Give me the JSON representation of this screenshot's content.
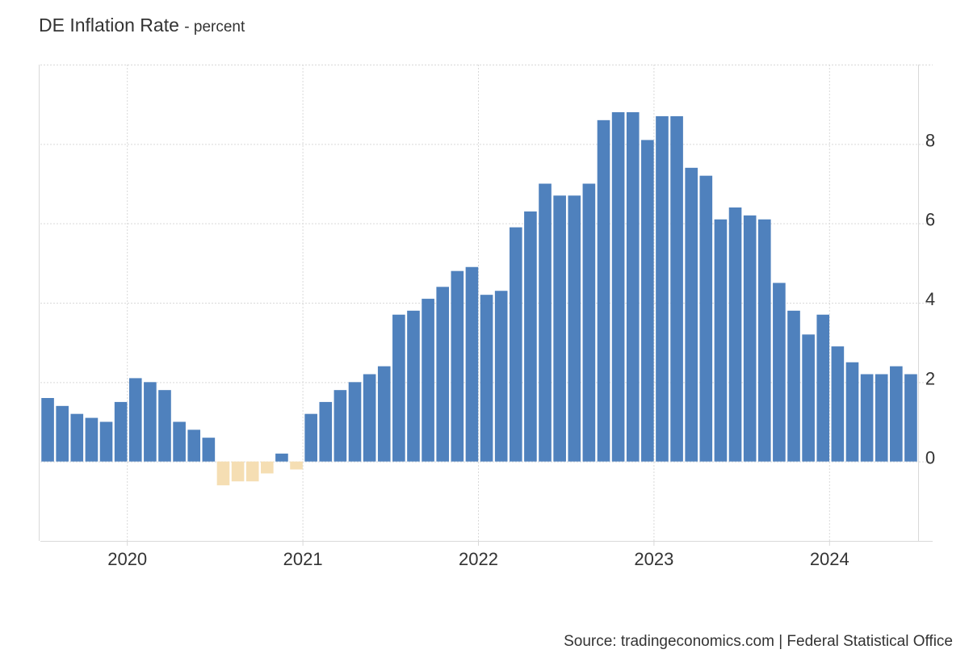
{
  "chart_data": {
    "type": "bar",
    "title": "DE Inflation Rate",
    "subtitle": "- percent",
    "source": "Source: tradingeconomics.com | Federal Statistical Office",
    "xlabel": "",
    "ylabel": "",
    "ylim": [
      -2,
      10
    ],
    "y_ticks": [
      0,
      2,
      4,
      6,
      8
    ],
    "y_axis_side": "right",
    "x_range": [
      "2019-07",
      "2024-06"
    ],
    "x_ticks": [
      {
        "label": "2020",
        "month": "2020-01"
      },
      {
        "label": "2021",
        "month": "2021-01"
      },
      {
        "label": "2022",
        "month": "2022-01"
      },
      {
        "label": "2023",
        "month": "2023-01"
      },
      {
        "label": "2024",
        "month": "2024-01"
      }
    ],
    "grid": true,
    "colors": {
      "positive": "#4f81bd",
      "negative": "#f5deb3",
      "grid": "#d9d9d9",
      "axis": "#d9d9d9",
      "text": "#333333"
    },
    "categories": [
      "2019-07",
      "2019-08",
      "2019-09",
      "2019-10",
      "2019-11",
      "2019-12",
      "2020-01",
      "2020-02",
      "2020-03",
      "2020-04",
      "2020-05",
      "2020-06",
      "2020-07",
      "2020-08",
      "2020-09",
      "2020-10",
      "2020-11",
      "2020-12",
      "2021-01",
      "2021-02",
      "2021-03",
      "2021-04",
      "2021-05",
      "2021-06",
      "2021-07",
      "2021-08",
      "2021-09",
      "2021-10",
      "2021-11",
      "2021-12",
      "2022-01",
      "2022-02",
      "2022-03",
      "2022-04",
      "2022-05",
      "2022-06",
      "2022-07",
      "2022-08",
      "2022-09",
      "2022-10",
      "2022-11",
      "2022-12",
      "2023-01",
      "2023-02",
      "2023-03",
      "2023-04",
      "2023-05",
      "2023-06",
      "2023-07",
      "2023-08",
      "2023-09",
      "2023-10",
      "2023-11",
      "2023-12",
      "2024-01",
      "2024-02",
      "2024-03",
      "2024-04",
      "2024-05",
      "2024-06"
    ],
    "values": [
      1.6,
      1.4,
      1.2,
      1.1,
      1.0,
      1.5,
      2.1,
      2.0,
      1.8,
      1.0,
      0.8,
      0.6,
      -0.6,
      -0.5,
      -0.5,
      -0.3,
      0.2,
      -0.2,
      1.2,
      1.5,
      1.8,
      2.0,
      2.2,
      2.4,
      3.7,
      3.8,
      4.1,
      4.4,
      4.8,
      4.9,
      4.2,
      4.3,
      5.9,
      6.3,
      7.0,
      6.7,
      6.7,
      7.0,
      8.6,
      8.8,
      8.8,
      8.1,
      8.7,
      8.7,
      7.4,
      7.2,
      6.1,
      6.4,
      6.2,
      6.1,
      4.5,
      3.8,
      3.2,
      3.7,
      2.9,
      2.5,
      2.2,
      2.2,
      2.4,
      2.2
    ]
  }
}
